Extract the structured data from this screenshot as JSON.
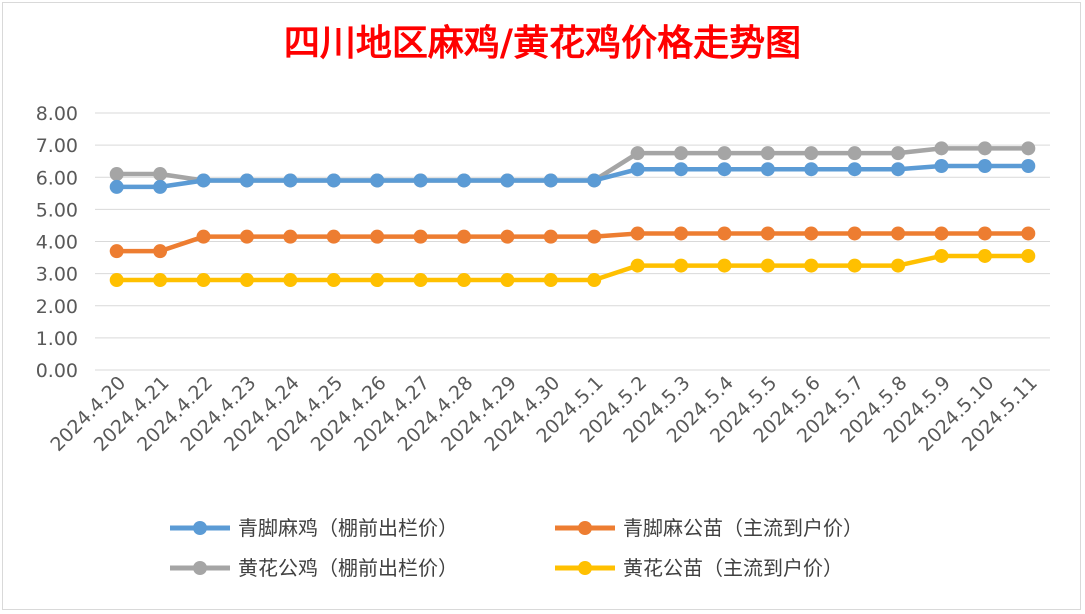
{
  "chart_data": {
    "type": "line",
    "title": "四川地区麻鸡/黄花鸡价格走势图",
    "xlabel": "",
    "ylabel": "",
    "ylim": [
      0,
      8
    ],
    "y_ticks": [
      "0.00",
      "1.00",
      "2.00",
      "3.00",
      "4.00",
      "5.00",
      "6.00",
      "7.00",
      "8.00"
    ],
    "grid": true,
    "legend_position": "bottom",
    "categories": [
      "2024.4.20",
      "2024.4.21",
      "2024.4.22",
      "2024.4.23",
      "2024.4.24",
      "2024.4.25",
      "2024.4.26",
      "2024.4.27",
      "2024.4.28",
      "2024.4.29",
      "2024.4.30",
      "2024.5.1",
      "2024.5.2",
      "2024.5.3",
      "2024.5.4",
      "2024.5.5",
      "2024.5.6",
      "2024.5.7",
      "2024.5.8",
      "2024.5.9",
      "2024.5.10",
      "2024.5.11"
    ],
    "series": [
      {
        "name": "青脚麻鸡（棚前出栏价）",
        "color": "#5b9bd5",
        "values": [
          5.7,
          5.7,
          5.9,
          5.9,
          5.9,
          5.9,
          5.9,
          5.9,
          5.9,
          5.9,
          5.9,
          5.9,
          6.25,
          6.25,
          6.25,
          6.25,
          6.25,
          6.25,
          6.25,
          6.35,
          6.35,
          6.35
        ]
      },
      {
        "name": "青脚麻公苗（主流到户价）",
        "color": "#ed7d31",
        "values": [
          3.7,
          3.7,
          4.15,
          4.15,
          4.15,
          4.15,
          4.15,
          4.15,
          4.15,
          4.15,
          4.15,
          4.15,
          4.25,
          4.25,
          4.25,
          4.25,
          4.25,
          4.25,
          4.25,
          4.25,
          4.25,
          4.25
        ]
      },
      {
        "name": "黄花公鸡（棚前出栏价）",
        "color": "#a5a5a5",
        "values": [
          6.1,
          6.1,
          5.9,
          5.9,
          5.9,
          5.9,
          5.9,
          5.9,
          5.9,
          5.9,
          5.9,
          5.9,
          6.75,
          6.75,
          6.75,
          6.75,
          6.75,
          6.75,
          6.75,
          6.9,
          6.9,
          6.9
        ]
      },
      {
        "name": "黄花公苗（主流到户价）",
        "color": "#ffc000",
        "values": [
          2.8,
          2.8,
          2.8,
          2.8,
          2.8,
          2.8,
          2.8,
          2.8,
          2.8,
          2.8,
          2.8,
          2.8,
          3.25,
          3.25,
          3.25,
          3.25,
          3.25,
          3.25,
          3.25,
          3.55,
          3.55,
          3.55
        ]
      }
    ]
  }
}
